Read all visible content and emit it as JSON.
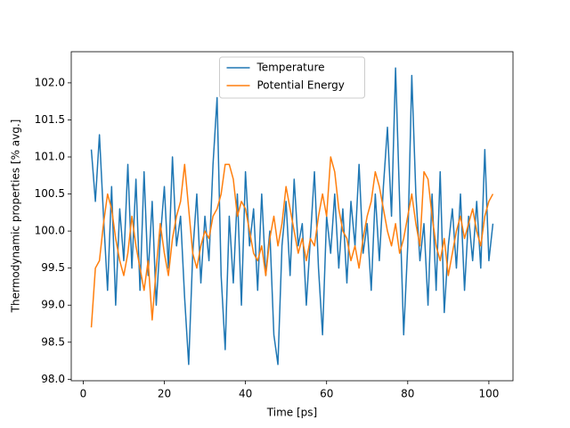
{
  "chart_data": {
    "type": "line",
    "x_label": "Time [ps]",
    "y_label": "Thermodynamic properties [% avg.]",
    "x": [
      2,
      3,
      4,
      5,
      6,
      7,
      8,
      9,
      10,
      11,
      12,
      13,
      14,
      15,
      16,
      17,
      18,
      19,
      20,
      21,
      22,
      23,
      24,
      25,
      26,
      27,
      28,
      29,
      30,
      31,
      32,
      33,
      34,
      35,
      36,
      37,
      38,
      39,
      40,
      41,
      42,
      43,
      44,
      45,
      46,
      47,
      48,
      49,
      50,
      51,
      52,
      53,
      54,
      55,
      56,
      57,
      58,
      59,
      60,
      61,
      62,
      63,
      64,
      65,
      66,
      67,
      68,
      69,
      70,
      71,
      72,
      73,
      74,
      75,
      76,
      77,
      78,
      79,
      80,
      81,
      82,
      83,
      84,
      85,
      86,
      87,
      88,
      89,
      90,
      91,
      92,
      93,
      94,
      95,
      96,
      97,
      98,
      99,
      100,
      101
    ],
    "series": [
      {
        "name": "Temperature",
        "color": "#1f77b4",
        "values": [
          101.1,
          100.4,
          101.3,
          100.2,
          99.2,
          100.6,
          99.0,
          100.3,
          99.6,
          100.9,
          99.5,
          100.7,
          99.2,
          100.8,
          99.4,
          100.4,
          99.0,
          99.9,
          100.6,
          99.5,
          101.0,
          99.8,
          100.2,
          99.1,
          98.2,
          99.7,
          100.5,
          99.3,
          100.2,
          99.6,
          100.9,
          101.8,
          99.4,
          98.4,
          100.2,
          99.3,
          100.5,
          99.0,
          100.8,
          99.8,
          100.3,
          99.2,
          100.5,
          99.4,
          100.0,
          98.6,
          98.2,
          99.8,
          100.4,
          99.4,
          100.7,
          99.8,
          100.1,
          99.0,
          99.9,
          100.8,
          99.5,
          98.6,
          100.2,
          99.7,
          100.5,
          99.5,
          100.3,
          99.3,
          100.4,
          99.8,
          100.9,
          99.7,
          100.1,
          99.2,
          100.5,
          99.6,
          100.6,
          101.4,
          100.2,
          102.2,
          100.4,
          98.6,
          99.8,
          102.1,
          100.5,
          99.6,
          100.1,
          99.0,
          100.5,
          99.2,
          100.8,
          98.9,
          99.8,
          100.3,
          99.5,
          100.5,
          99.2,
          100.2,
          99.6,
          100.4,
          99.5,
          101.1,
          99.6,
          100.1
        ]
      },
      {
        "name": "Potential Energy",
        "color": "#ff7f0e",
        "values": [
          98.7,
          99.5,
          99.6,
          100.1,
          100.5,
          100.3,
          99.9,
          99.6,
          99.4,
          99.7,
          100.2,
          99.8,
          99.5,
          99.2,
          99.6,
          98.8,
          99.5,
          100.1,
          99.7,
          99.4,
          99.9,
          100.2,
          100.4,
          100.9,
          100.3,
          99.7,
          99.5,
          99.8,
          100.0,
          99.9,
          100.2,
          100.3,
          100.5,
          100.9,
          100.9,
          100.7,
          100.2,
          100.4,
          100.3,
          100.0,
          99.7,
          99.6,
          99.8,
          99.4,
          99.9,
          100.2,
          99.8,
          100.1,
          100.6,
          100.3,
          100.0,
          99.7,
          99.9,
          99.6,
          99.9,
          99.8,
          100.2,
          100.5,
          100.2,
          101.0,
          100.8,
          100.3,
          100.0,
          99.9,
          99.6,
          99.8,
          99.5,
          99.9,
          100.2,
          100.4,
          100.8,
          100.6,
          100.3,
          100.0,
          99.8,
          100.1,
          99.7,
          99.9,
          100.2,
          100.5,
          100.1,
          99.8,
          100.8,
          100.7,
          100.2,
          99.8,
          99.6,
          99.9,
          99.4,
          99.7,
          100.0,
          100.2,
          99.9,
          100.1,
          100.3,
          100.0,
          99.8,
          100.2,
          100.4,
          100.5
        ]
      }
    ],
    "xlim": [
      -2.95,
      105.95
    ],
    "ylim": [
      97.98,
      102.42
    ],
    "xticks": [
      0,
      20,
      40,
      60,
      80,
      100
    ],
    "yticks": [
      {
        "value": 98,
        "label": "98.0"
      },
      98.5,
      {
        "value": 99,
        "label": "99.0"
      },
      99.5,
      {
        "value": 100,
        "label": "100.0"
      },
      100.5,
      {
        "value": 101,
        "label": "101.0"
      },
      101.5,
      {
        "value": 102,
        "label": "102.0"
      }
    ],
    "legend": "upper center",
    "grid": false
  }
}
